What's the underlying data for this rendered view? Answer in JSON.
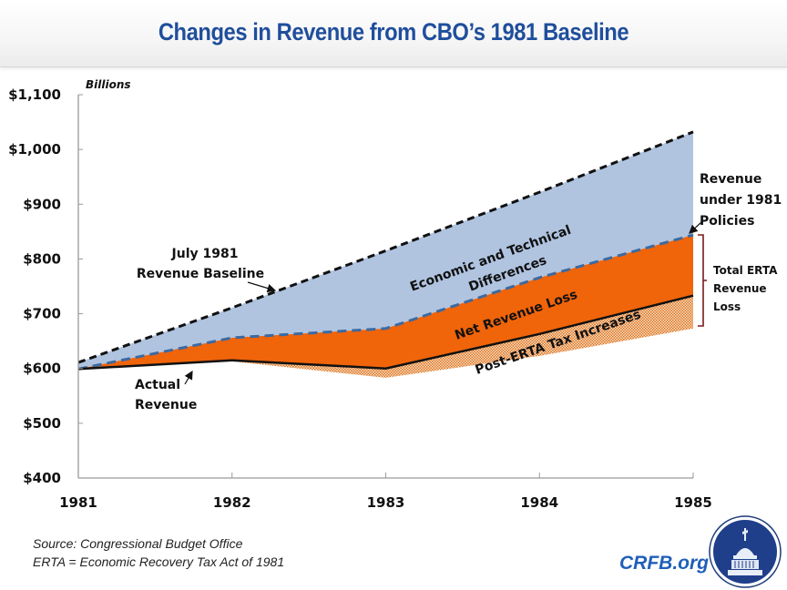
{
  "header": {
    "title": "Changes in Revenue from CBO’s 1981 Baseline"
  },
  "chart_data": {
    "type": "area",
    "title": "Changes in Revenue from CBO’s 1981 Baseline",
    "ylabel": "Billions",
    "xlabel": "",
    "x": [
      1981,
      1982,
      1983,
      1984,
      1985
    ],
    "xticks": [
      "1981",
      "1982",
      "1983",
      "1984",
      "1985"
    ],
    "yticks": [
      "$400",
      "$500",
      "$600",
      "$700",
      "$800",
      "$900",
      "$1,000",
      "$1,100"
    ],
    "ytick_values": [
      400,
      500,
      600,
      700,
      800,
      900,
      1000,
      1100
    ],
    "ylim": [
      400,
      1100
    ],
    "grid": false,
    "series": [
      {
        "name": "July 1981 Revenue Baseline",
        "style": "dashed-black",
        "values": [
          611,
          711,
          815,
          922,
          1032
        ]
      },
      {
        "name": "Revenue under 1981 Policies",
        "style": "dashed-blue",
        "values": [
          599,
          656,
          673,
          766,
          844
        ]
      },
      {
        "name": "Actual Revenue",
        "style": "solid-black",
        "values": [
          599,
          615,
          600,
          663,
          733
        ]
      },
      {
        "name": "Post-ERTA Tax Increases lower bound",
        "style": "hatched",
        "values": [
          599,
          613,
          583,
          623,
          673
        ]
      }
    ],
    "bands": [
      {
        "name": "Economic and Technical Differences",
        "from": "Revenue under 1981 Policies",
        "to": "July 1981 Revenue Baseline",
        "color": "#b0c4e0"
      },
      {
        "name": "Net Revenue Loss",
        "from": "Actual Revenue",
        "to": "Revenue under 1981 Policies",
        "color": "#f0640a"
      },
      {
        "name": "Post-ERTA Tax Increases",
        "from": "Post-ERTA Tax Increases lower bound",
        "to": "Actual Revenue",
        "color": "#c98a4f"
      }
    ],
    "annotations": {
      "baseline": [
        "July 1981",
        "Revenue Baseline"
      ],
      "actual": [
        "Actual",
        "Revenue"
      ],
      "policies": [
        "Revenue",
        "under 1981",
        "Policies"
      ],
      "econ": [
        "Economic and Technical",
        "Differences"
      ],
      "net": "Net Revenue Loss",
      "post": "Post-ERTA Tax Increases",
      "total": [
        "Total ERTA",
        "Revenue",
        "Loss"
      ]
    },
    "colors": {
      "econ_fill": "#b0c4e0",
      "net_fill": "#f0640a",
      "hatch_a": "#e07020",
      "hatch_b": "#f6e3c8",
      "policy_line": "#3d6aa0",
      "bracket": "#7a1a1a"
    }
  },
  "footer": {
    "source": "Source: Congressional Budget Office",
    "note": "ERTA = Economic Recovery Tax Act of 1981",
    "brand": "CRFB.org"
  }
}
